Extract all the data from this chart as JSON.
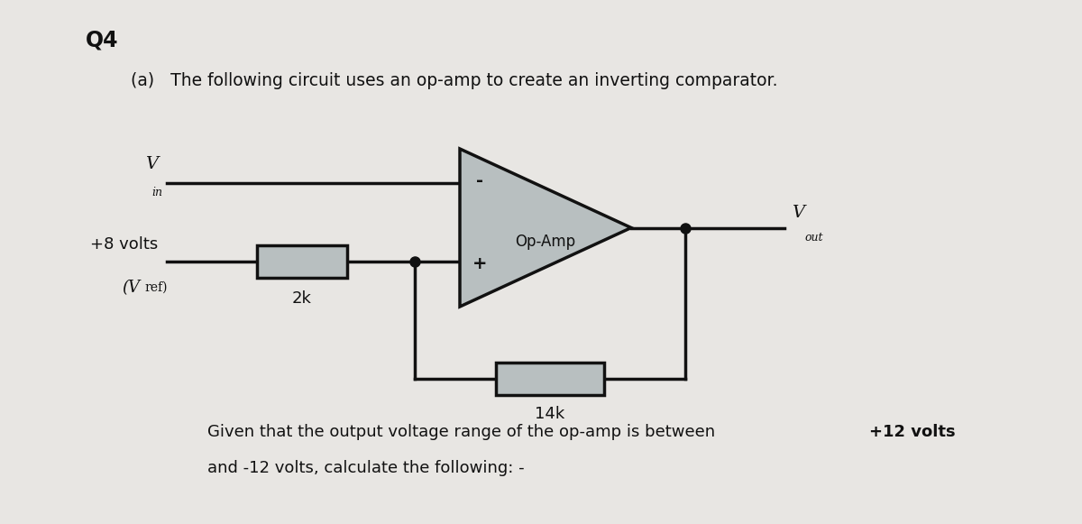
{
  "background_color": "#e8e6e3",
  "title_q4": "Q4",
  "part_a_text": "(a)   The following circuit uses an op-amp to create an inverting comparator.",
  "opamp_label": "Op-Amp",
  "minus_label": "-",
  "plus_label": "+",
  "vref_label": "+8 volts",
  "vref_sub_label": "(V",
  "vref_sub2": "ref)",
  "label_2k": "2k",
  "label_14k": "14k",
  "line1_normal": "Given that the output voltage range of the op-amp is between ",
  "line1_bold": "+12 volts",
  "line2": "and -12 volts, calculate the following: -",
  "line_color": "#111111",
  "fill_color": "#b8bfc0",
  "dot_color": "#111111",
  "text_color": "#111111"
}
